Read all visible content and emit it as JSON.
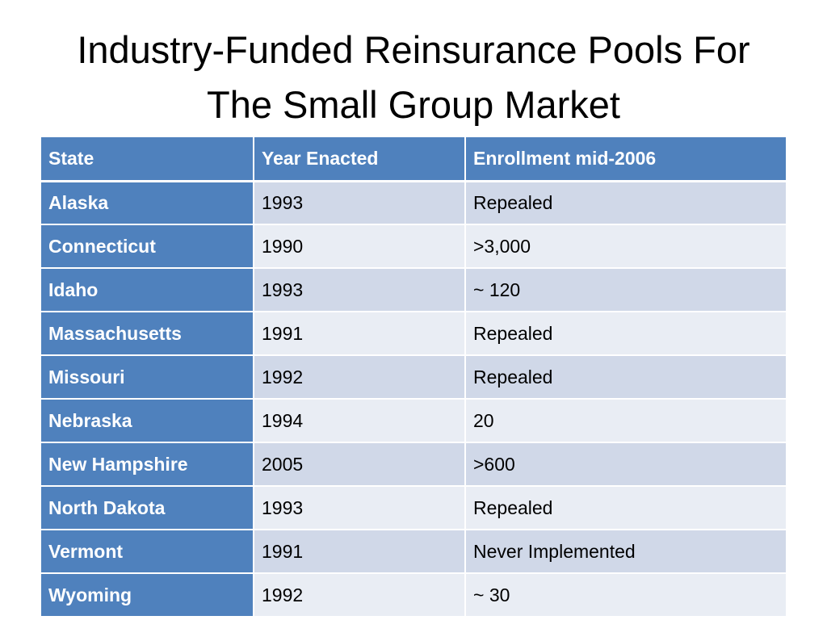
{
  "slide": {
    "title_line1": "Industry-Funded Reinsurance Pools For",
    "title_line2": "The Small Group Market"
  },
  "table": {
    "headers": [
      "State",
      "Year Enacted",
      "Enrollment mid-2006"
    ],
    "rows": [
      {
        "state": "Alaska",
        "year": "1993",
        "enrollment": "Repealed"
      },
      {
        "state": "Connecticut",
        "year": "1990",
        "enrollment": ">3,000"
      },
      {
        "state": "Idaho",
        "year": "1993",
        "enrollment": "~ 120"
      },
      {
        "state": "Massachusetts",
        "year": "1991",
        "enrollment": "Repealed"
      },
      {
        "state": "Missouri",
        "year": "1992",
        "enrollment": "Repealed"
      },
      {
        "state": "Nebraska",
        "year": "1994",
        "enrollment": "20"
      },
      {
        "state": "New Hampshire",
        "year": "2005",
        "enrollment": ">600"
      },
      {
        "state": "North Dakota",
        "year": "1993",
        "enrollment": "Repealed"
      },
      {
        "state": "Vermont",
        "year": "1991",
        "enrollment": "Never Implemented"
      },
      {
        "state": "Wyoming",
        "year": "1992",
        "enrollment": "~ 30"
      }
    ]
  },
  "colors": {
    "header_blue": "#4f81bd",
    "row_band_dark": "#d0d8e8",
    "row_band_light": "#e9edf4"
  }
}
